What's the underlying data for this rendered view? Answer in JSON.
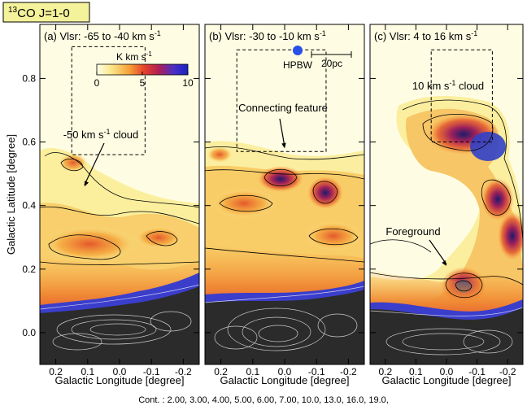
{
  "chart_data": {
    "type": "heatmap",
    "molecule_label": "CO J=1-0",
    "isotope_mass": "13",
    "xlabel": "Galactic Longitude [degree]",
    "ylabel": "Galactic Latitude [degree]",
    "xlim": [
      0.25,
      -0.25
    ],
    "ylim": [
      -0.1,
      0.97
    ],
    "x_ticks": [
      0.2,
      0.1,
      0.0,
      -0.1,
      -0.2
    ],
    "x_tick_labels": [
      "0.2",
      "0.1",
      "0.0",
      "-0.1",
      "-0.2"
    ],
    "y_ticks": [
      0.0,
      0.2,
      0.4,
      0.6,
      0.8
    ],
    "y_tick_labels": [
      "0.0",
      "0.2",
      "0.4",
      "0.6",
      "0.8"
    ],
    "colorbar": {
      "label": "K km s",
      "label_exp": "-1",
      "min": 0,
      "max": 10,
      "ticks": [
        0,
        5,
        10
      ],
      "tick_labels": [
        "0",
        "5",
        "10"
      ],
      "colors": [
        "#fefde8",
        "#fbe98f",
        "#f6a43a",
        "#e5422a",
        "#b01e55",
        "#4b2fc4",
        "#1722c2"
      ]
    },
    "panels": [
      {
        "panel_label": "(a) Vlsr: -65 to -40 km s",
        "unit_exp": "-1",
        "box": {
          "l": [
            0.15,
            -0.08
          ],
          "b": [
            0.56,
            0.9
          ]
        },
        "annotation": {
          "text": "-50 km s",
          "exp": "-1",
          "suffix": " cloud",
          "arrow_to": [
            0.11,
            0.46
          ]
        }
      },
      {
        "panel_label": "(b) Vlsr: -30 to -10 km s",
        "unit_exp": "-1",
        "box": {
          "l": [
            0.15,
            -0.13
          ],
          "b": [
            0.57,
            0.89
          ]
        },
        "annotation": {
          "text": "Connecting feature",
          "arrow_to": [
            0.0,
            0.58
          ]
        },
        "hpbw_label": "HPBW",
        "scale_label": "20pc"
      },
      {
        "panel_label": "(c) Vlsr: 4 to 16 km s",
        "unit_exp": "-1",
        "box": {
          "l": [
            0.05,
            -0.15
          ],
          "b": [
            0.6,
            0.89
          ]
        },
        "annotation_top": {
          "text": "10 km s",
          "exp": "-1",
          "suffix": " cloud"
        },
        "annotation": {
          "text": "Foreground",
          "arrow_to": [
            0.0,
            0.21
          ]
        }
      }
    ],
    "contour_levels": [
      2.0,
      3.0,
      4.0,
      5.0,
      6.0,
      7.0,
      10.0,
      13.0,
      16.0,
      19.0
    ],
    "legend": "none",
    "grid": false
  },
  "footer": {
    "contours": "Cont. : 2.00, 3.00, 4.00, 5.00, 6.00, 7.00, 10.0, 13.0, 16.0, 19.0,"
  }
}
